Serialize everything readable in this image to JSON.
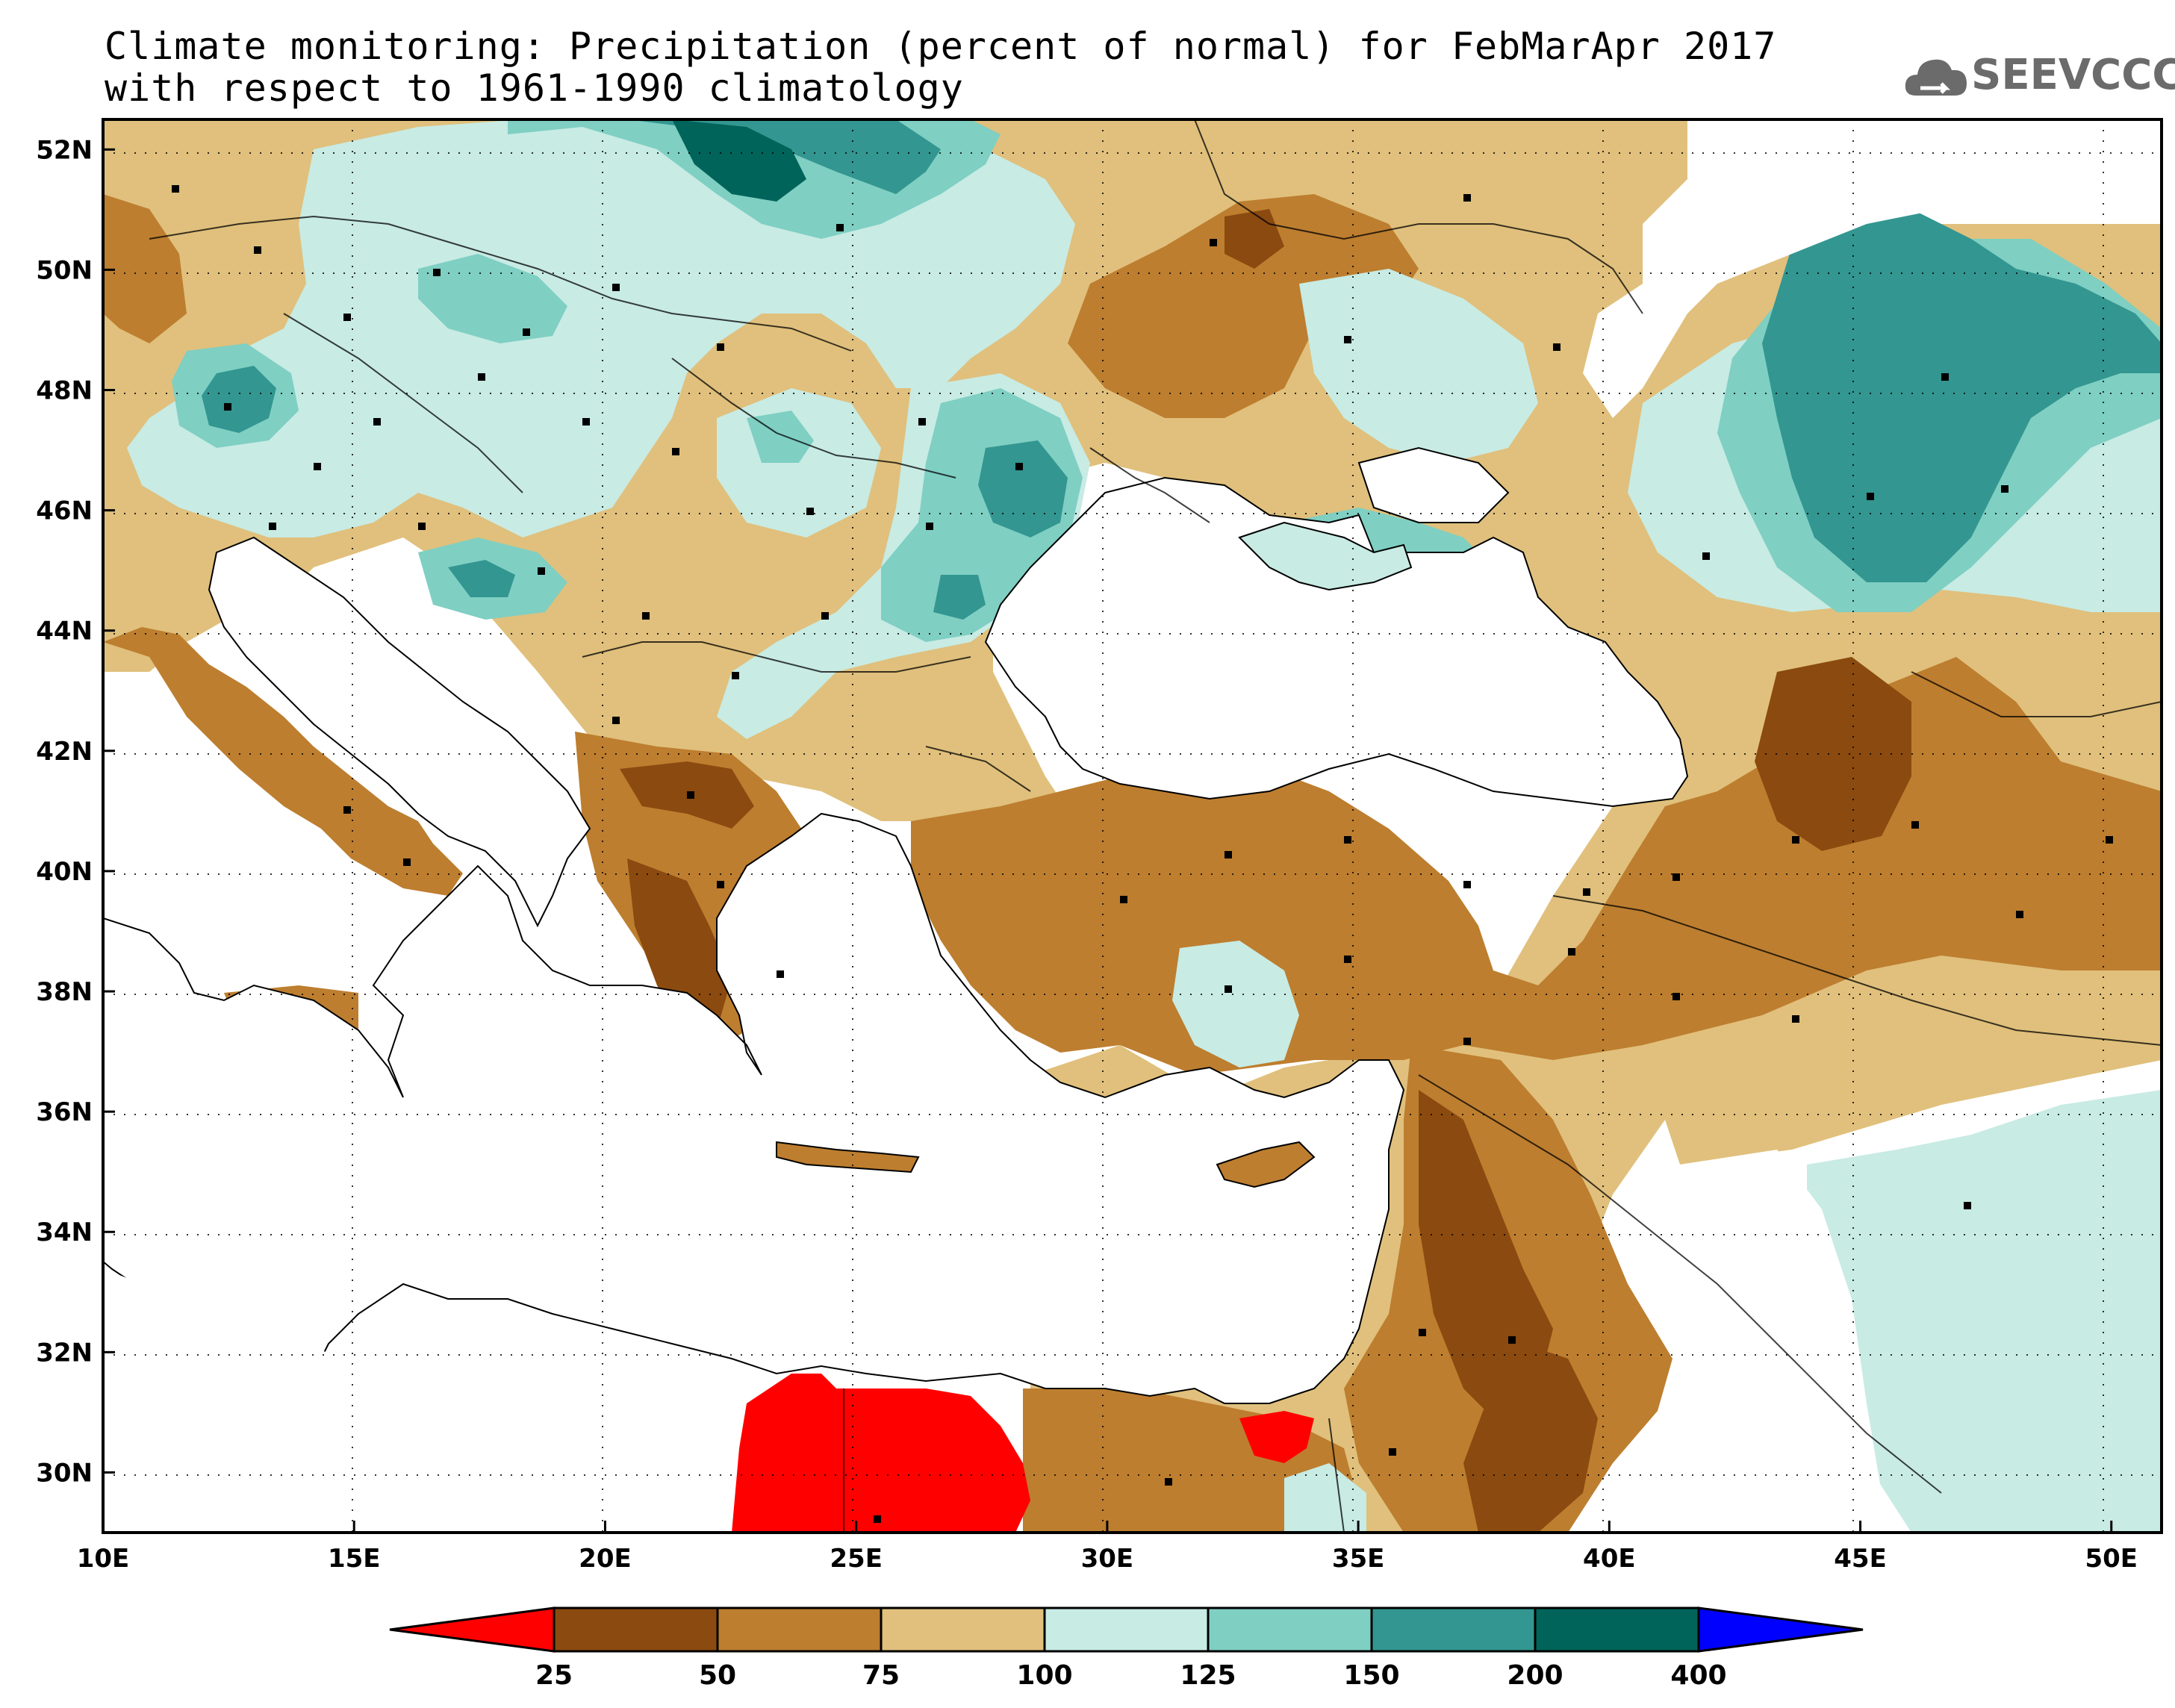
{
  "title": {
    "line1": "Climate monitoring: Precipitation (percent of normal) for FebMarApr 2017",
    "line2": "with respect to 1961-1990 climatology"
  },
  "logo": {
    "text": "SEEVCCC",
    "icon": "cloud-icon",
    "color": "#6b6b6b"
  },
  "map": {
    "lon_range": [
      10,
      51
    ],
    "lat_range": [
      29,
      52.5
    ],
    "lon_ticks": [
      "10E",
      "15E",
      "20E",
      "25E",
      "30E",
      "35E",
      "40E",
      "45E",
      "50E"
    ],
    "lat_ticks": [
      "30N",
      "32N",
      "34N",
      "36N",
      "38N",
      "40N",
      "42N",
      "44N",
      "46N",
      "48N",
      "50N",
      "52N"
    ],
    "grid": "dotted"
  },
  "legend": {
    "thresholds": [
      "25",
      "50",
      "75",
      "100",
      "125",
      "150",
      "200",
      "400"
    ],
    "colors": [
      "#ff0000",
      "#8b4a0f",
      "#bd7e2f",
      "#e0c07c",
      "#c8ebe4",
      "#7fcfc3",
      "#339690",
      "#00645a",
      "#0000ff"
    ]
  }
}
